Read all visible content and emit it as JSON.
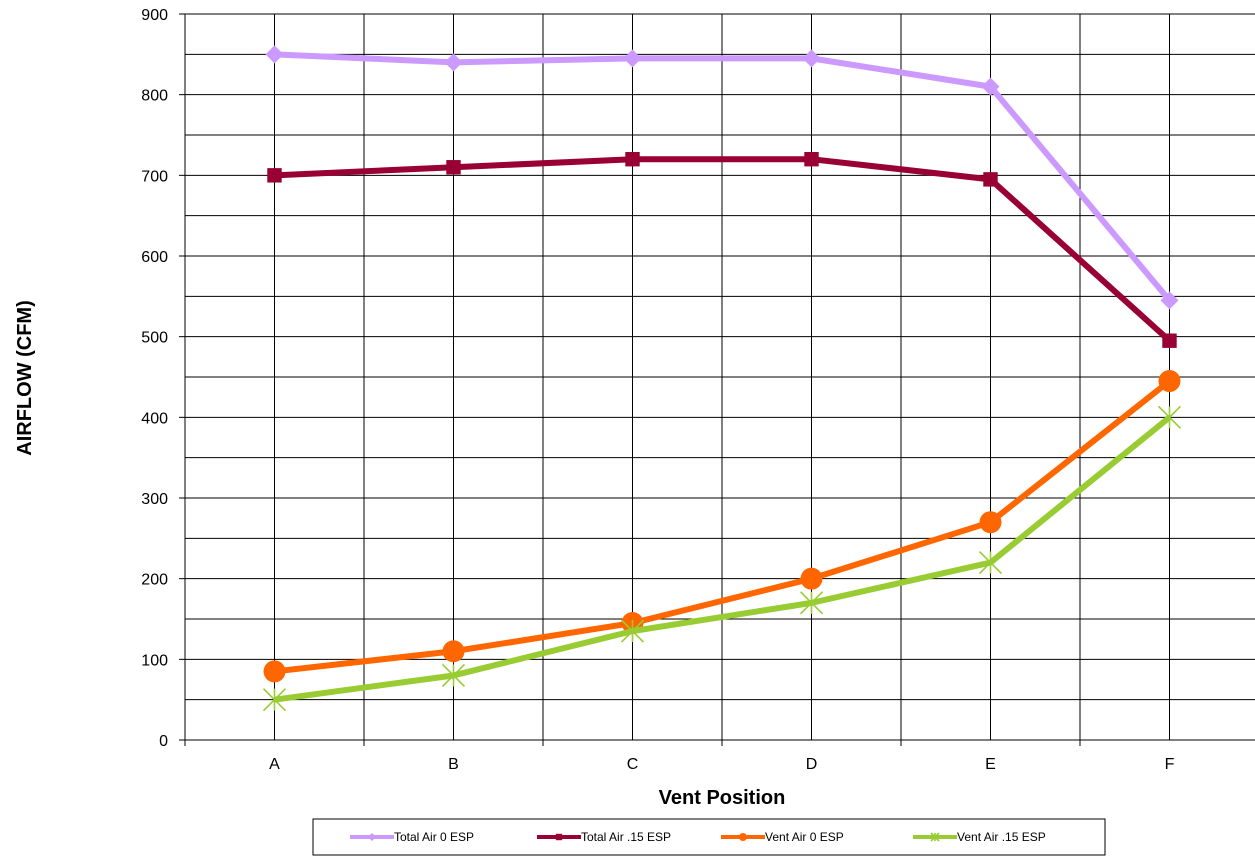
{
  "chart_data": {
    "type": "line",
    "categories": [
      "A",
      "B",
      "C",
      "D",
      "E",
      "F"
    ],
    "xlabel": "Vent Position",
    "ylabel": "AIRFLOW (CFM)",
    "ylim": [
      0,
      900
    ],
    "yticks": [
      0,
      100,
      200,
      300,
      400,
      500,
      600,
      700,
      800,
      900
    ],
    "grid": true,
    "legend_position": "bottom",
    "series": [
      {
        "name": "Total Air 0 ESP",
        "values": [
          850,
          840,
          845,
          845,
          810,
          545
        ],
        "color": "#CC99FF",
        "marker": "diamond"
      },
      {
        "name": "Total Air .15 ESP",
        "values": [
          700,
          710,
          720,
          720,
          695,
          495
        ],
        "color": "#990033",
        "marker": "square"
      },
      {
        "name": "Vent Air 0 ESP",
        "values": [
          85,
          110,
          145,
          200,
          270,
          445
        ],
        "color": "#FF6600",
        "marker": "circle"
      },
      {
        "name": "Vent Air .15 ESP",
        "values": [
          50,
          80,
          135,
          170,
          220,
          400
        ],
        "color": "#99CC33",
        "marker": "star"
      }
    ]
  }
}
